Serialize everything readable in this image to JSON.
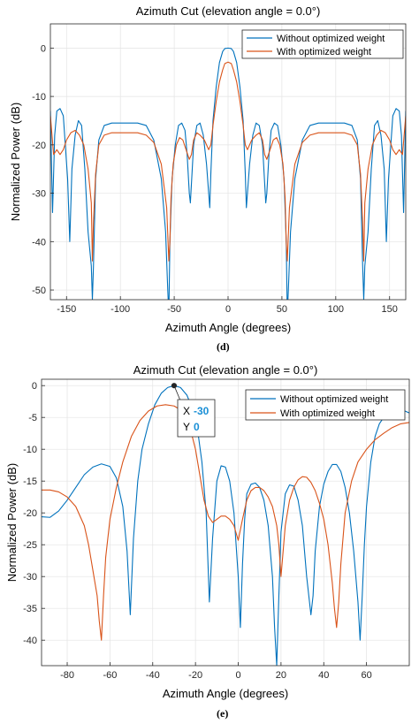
{
  "chart_data": [
    {
      "type": "line",
      "panel_label": "(d)",
      "title": "Azimuth Cut (elevation angle = 0.0°)",
      "xlabel": "Azimuth Angle (degrees)",
      "ylabel": "Normalized Power (dB)",
      "xlim": [
        -165,
        165
      ],
      "ylim": [
        -52,
        5
      ],
      "xticks": [
        -150,
        -100,
        -50,
        0,
        50,
        100,
        150
      ],
      "yticks": [
        0,
        -10,
        -20,
        -30,
        -40,
        -50
      ],
      "grid": true,
      "legend_position": "top-right",
      "series": [
        {
          "name": "Without optimized weight",
          "color": "#0072BD",
          "x": [
            -165,
            -163,
            -161,
            -159,
            -156,
            -153,
            -149,
            -147,
            -145,
            -142,
            -139,
            -136,
            -133,
            -130,
            -127,
            -126,
            -125,
            -123,
            -120,
            -115,
            -108,
            -100,
            -92,
            -84,
            -76,
            -69,
            -62,
            -58,
            -56,
            -55,
            -54,
            -52,
            -49,
            -46,
            -43,
            -40,
            -38,
            -36,
            -35,
            -34,
            -32,
            -29,
            -26,
            -23,
            -20,
            -18,
            -17,
            -16,
            -14,
            -11,
            -8,
            -5,
            -3,
            0,
            3,
            5,
            8,
            11,
            14,
            16,
            17,
            18,
            20,
            23,
            26,
            29,
            32,
            34,
            35,
            36,
            38,
            40,
            43,
            46,
            49,
            52,
            54,
            55,
            56,
            58,
            62,
            69,
            76,
            84,
            92,
            100,
            108,
            115,
            120,
            123,
            125,
            126,
            127,
            130,
            133,
            136,
            139,
            142,
            145,
            147,
            149,
            153,
            156,
            159,
            161,
            163,
            165
          ],
          "y": [
            -13,
            -34,
            -18,
            -13,
            -12.5,
            -14,
            -27,
            -40,
            -25,
            -18,
            -15,
            -16,
            -25,
            -38,
            -45,
            -52,
            -45,
            -27,
            -19,
            -16,
            -15.5,
            -15.5,
            -15.5,
            -15.5,
            -16,
            -19,
            -27,
            -38,
            -50,
            -55,
            -40,
            -27,
            -20,
            -16,
            -15.5,
            -17,
            -22,
            -30,
            -32,
            -28,
            -20,
            -16,
            -15.5,
            -18,
            -24,
            -30,
            -33,
            -26,
            -15,
            -8,
            -3,
            -0.7,
            -0.1,
            0,
            -0.1,
            -0.7,
            -3,
            -8,
            -15,
            -26,
            -33,
            -30,
            -24,
            -18,
            -15.5,
            -16,
            -20,
            -28,
            -32,
            -30,
            -22,
            -17,
            -15.5,
            -16,
            -20,
            -27,
            -40,
            -55,
            -50,
            -38,
            -27,
            -19,
            -16,
            -15.5,
            -15.5,
            -15.5,
            -15.5,
            -16,
            -19,
            -27,
            -45,
            -52,
            -45,
            -38,
            -25,
            -16,
            -15,
            -18,
            -25,
            -40,
            -27,
            -14,
            -12.5,
            -13,
            -18,
            -34,
            -13
          ]
        },
        {
          "name": "With optimized weight",
          "color": "#D95319",
          "x": [
            -165,
            -162,
            -159,
            -156,
            -153,
            -150,
            -146,
            -142,
            -138,
            -134,
            -130,
            -127,
            -126,
            -125,
            -123,
            -120,
            -115,
            -108,
            -100,
            -92,
            -84,
            -76,
            -69,
            -62,
            -57,
            -55,
            -54,
            -53,
            -51,
            -48,
            -45,
            -42,
            -39,
            -36,
            -34,
            -32,
            -29,
            -26,
            -22,
            -18,
            -16,
            -14,
            -11,
            -8,
            -5,
            -3,
            0,
            3,
            5,
            8,
            11,
            14,
            16,
            18,
            22,
            26,
            29,
            32,
            34,
            36,
            39,
            42,
            45,
            48,
            51,
            53,
            54,
            55,
            57,
            62,
            69,
            76,
            84,
            92,
            100,
            108,
            115,
            120,
            123,
            125,
            126,
            127,
            130,
            134,
            138,
            142,
            146,
            150,
            153,
            156,
            159,
            162,
            165
          ],
          "y": [
            -14,
            -22,
            -21,
            -22,
            -21,
            -19,
            -17.5,
            -17,
            -18,
            -20,
            -25,
            -32,
            -44,
            -36,
            -26,
            -20,
            -18,
            -17.5,
            -17.5,
            -17.5,
            -17.5,
            -18,
            -19.5,
            -24,
            -33,
            -44,
            -40,
            -31,
            -24,
            -20,
            -18.5,
            -19,
            -21,
            -23,
            -22,
            -19,
            -17.5,
            -18,
            -19,
            -21,
            -20,
            -16,
            -11,
            -7,
            -4.5,
            -3.2,
            -2.9,
            -3.2,
            -4.5,
            -7,
            -11,
            -16,
            -20,
            -21,
            -19,
            -18,
            -17.5,
            -19,
            -22,
            -23,
            -21,
            -19,
            -18.5,
            -20,
            -24,
            -31,
            -40,
            -44,
            -33,
            -24,
            -19.5,
            -18,
            -17.5,
            -17.5,
            -17.5,
            -17.5,
            -18,
            -20,
            -26,
            -36,
            -44,
            -32,
            -25,
            -20,
            -18,
            -17,
            -17.5,
            -19,
            -21,
            -22,
            -21,
            -22,
            -14
          ]
        }
      ]
    },
    {
      "type": "line",
      "panel_label": "(e)",
      "title": "Azimuth Cut (elevation angle = 0.0°)",
      "xlabel": "Azimuth Angle (degrees)",
      "ylabel": "Normalized Power (dB)",
      "xlim": [
        -92,
        80
      ],
      "ylim": [
        -44,
        1
      ],
      "xticks": [
        -80,
        -60,
        -40,
        -20,
        0,
        20,
        40,
        60
      ],
      "yticks": [
        0,
        -5,
        -10,
        -15,
        -20,
        -25,
        -30,
        -35,
        -40
      ],
      "grid": true,
      "legend_position": "top-right",
      "datatip": {
        "x_label": "X",
        "x_value": "-30",
        "y_label": "Y",
        "y_value": "0",
        "at_x": -30,
        "at_y": 0
      },
      "series": [
        {
          "name": "Without optimized weight",
          "color": "#0072BD",
          "x": [
            -92,
            -88,
            -84,
            -80,
            -76,
            -72,
            -68,
            -64,
            -60,
            -57,
            -54,
            -52,
            -50.5,
            -49,
            -47,
            -45,
            -42,
            -39,
            -36,
            -33,
            -30,
            -27,
            -24,
            -21,
            -19,
            -17,
            -15,
            -13.5,
            -12,
            -10,
            -8,
            -6,
            -4,
            -2,
            0,
            1,
            2,
            3,
            4,
            6,
            8,
            10,
            12,
            14,
            16,
            17,
            18,
            19,
            20,
            22,
            24,
            26,
            28,
            30,
            32,
            34,
            35,
            36,
            38,
            40,
            42,
            44,
            46,
            48,
            50,
            52,
            54,
            56,
            57,
            58,
            59,
            60,
            62,
            64,
            66,
            68,
            70,
            72,
            74,
            76,
            78,
            80
          ],
          "y": [
            -20.6,
            -20.7,
            -19.7,
            -18,
            -16,
            -14,
            -12.8,
            -12.3,
            -12.7,
            -14.5,
            -19,
            -26,
            -36,
            -24,
            -15,
            -10,
            -6,
            -3,
            -1.2,
            -0.3,
            0,
            -0.3,
            -1.5,
            -4,
            -7,
            -12,
            -20,
            -34,
            -24,
            -15,
            -12.6,
            -12.8,
            -15,
            -20,
            -30,
            -38,
            -28,
            -21,
            -17,
            -15.5,
            -15.3,
            -16,
            -18,
            -22,
            -30,
            -38,
            -44,
            -33,
            -23,
            -17,
            -15.6,
            -15.8,
            -18,
            -22,
            -30,
            -36,
            -33,
            -26,
            -19,
            -15.5,
            -13.5,
            -12.4,
            -12.4,
            -13.5,
            -16,
            -20,
            -26,
            -34,
            -40,
            -33,
            -25,
            -19,
            -12,
            -8,
            -6,
            -5,
            -4.5,
            -4.1,
            -3.8,
            -3.7,
            -4,
            -4.3
          ]
        },
        {
          "name": "With optimized weight",
          "color": "#D95319",
          "x": [
            -92,
            -88,
            -84,
            -80,
            -76,
            -72,
            -70,
            -68,
            -66,
            -65,
            -64,
            -63,
            -62,
            -60,
            -57,
            -54,
            -50,
            -46,
            -42,
            -38,
            -34,
            -30,
            -26,
            -23,
            -20,
            -18,
            -16,
            -14,
            -12,
            -10,
            -8,
            -6,
            -4,
            -2,
            0,
            2,
            4,
            6,
            8,
            10,
            12,
            14,
            16,
            17,
            18,
            19,
            20,
            21,
            22,
            24,
            26,
            28,
            30,
            32,
            34,
            36,
            38,
            40,
            42,
            44,
            45,
            46,
            47,
            48,
            50,
            53,
            56,
            60,
            64,
            68,
            72,
            76,
            80
          ],
          "y": [
            -16.4,
            -16.4,
            -16.7,
            -17.5,
            -19,
            -22,
            -25,
            -29,
            -33,
            -37,
            -40,
            -33,
            -27,
            -21,
            -16,
            -12,
            -8,
            -5.5,
            -4,
            -3.2,
            -3,
            -3.2,
            -4,
            -6,
            -10,
            -14,
            -18,
            -20.5,
            -21.5,
            -21,
            -20.5,
            -20.5,
            -21,
            -22,
            -24.3,
            -21,
            -18,
            -16.5,
            -16,
            -16,
            -16.5,
            -17.5,
            -19,
            -20.5,
            -22,
            -25,
            -30,
            -26,
            -22,
            -18,
            -16,
            -14.8,
            -14.3,
            -14.4,
            -15.2,
            -16.5,
            -18.5,
            -21,
            -25,
            -31,
            -35,
            -38,
            -34,
            -28,
            -20,
            -15,
            -12,
            -10,
            -8.5,
            -7.5,
            -6.6,
            -6,
            -5.8
          ]
        }
      ]
    }
  ]
}
